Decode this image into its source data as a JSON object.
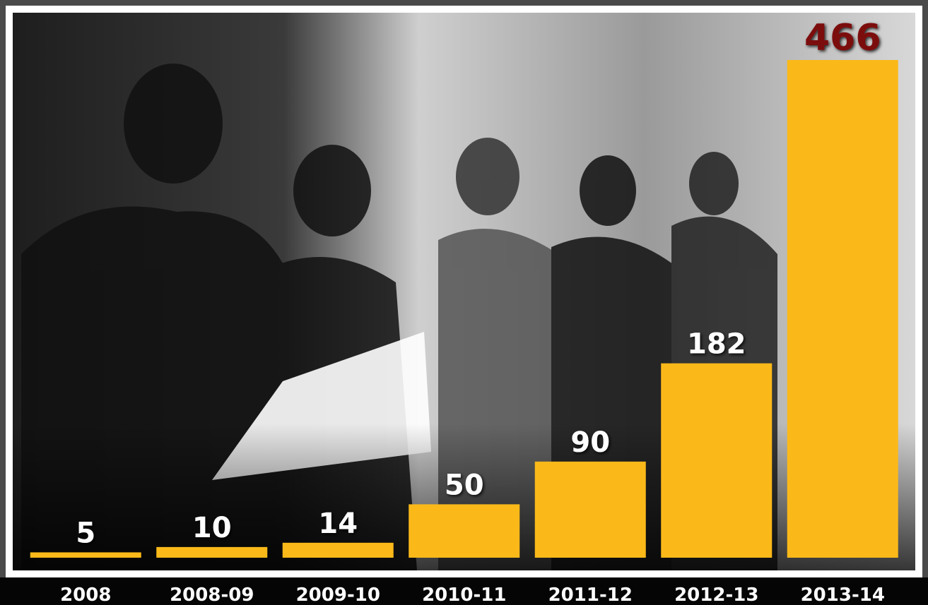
{
  "chart_data": {
    "type": "bar",
    "categories": [
      "2008",
      "2008-09",
      "2009-10",
      "2010-11",
      "2011-12",
      "2012-13",
      "2013-14"
    ],
    "values": [
      5,
      10,
      14,
      50,
      90,
      182,
      466
    ],
    "color": "#fbb919",
    "label_color": "#ffffff",
    "highlight_label_color": "#7c1010"
  }
}
